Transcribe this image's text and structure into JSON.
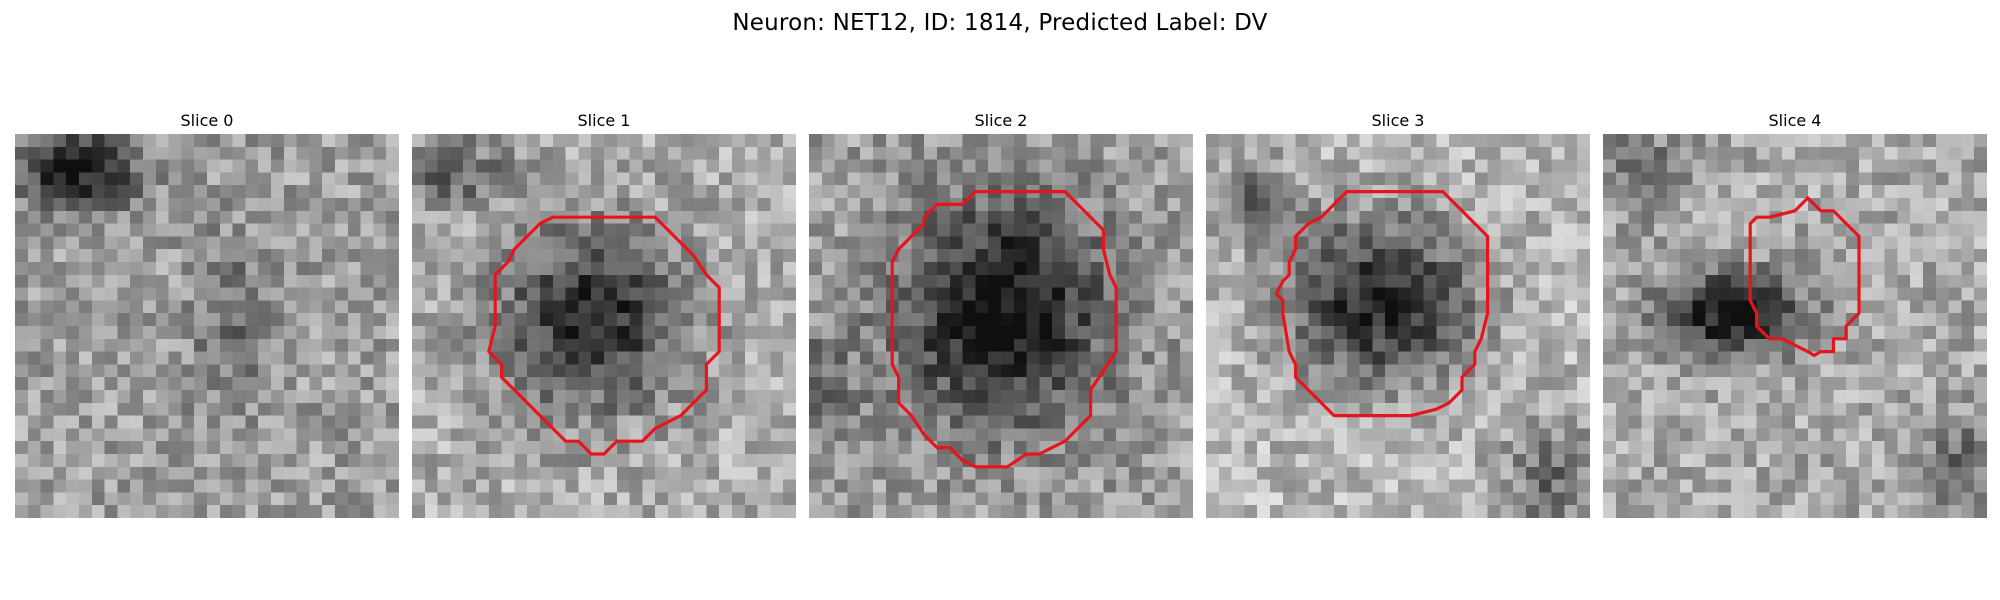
{
  "figure": {
    "title": "Neuron: NET12, ID: 1814, Predicted Label: DV"
  },
  "panels": [
    {
      "title": "Slice 0",
      "has_contour": false
    },
    {
      "title": "Slice 1",
      "has_contour": true
    },
    {
      "title": "Slice 2",
      "has_contour": true
    },
    {
      "title": "Slice 3",
      "has_contour": true
    },
    {
      "title": "Slice 4",
      "has_contour": true
    }
  ],
  "image": {
    "colormap": "grayscale",
    "grid": "30x30 pixels per slice",
    "contour_color": "#e8141b"
  }
}
